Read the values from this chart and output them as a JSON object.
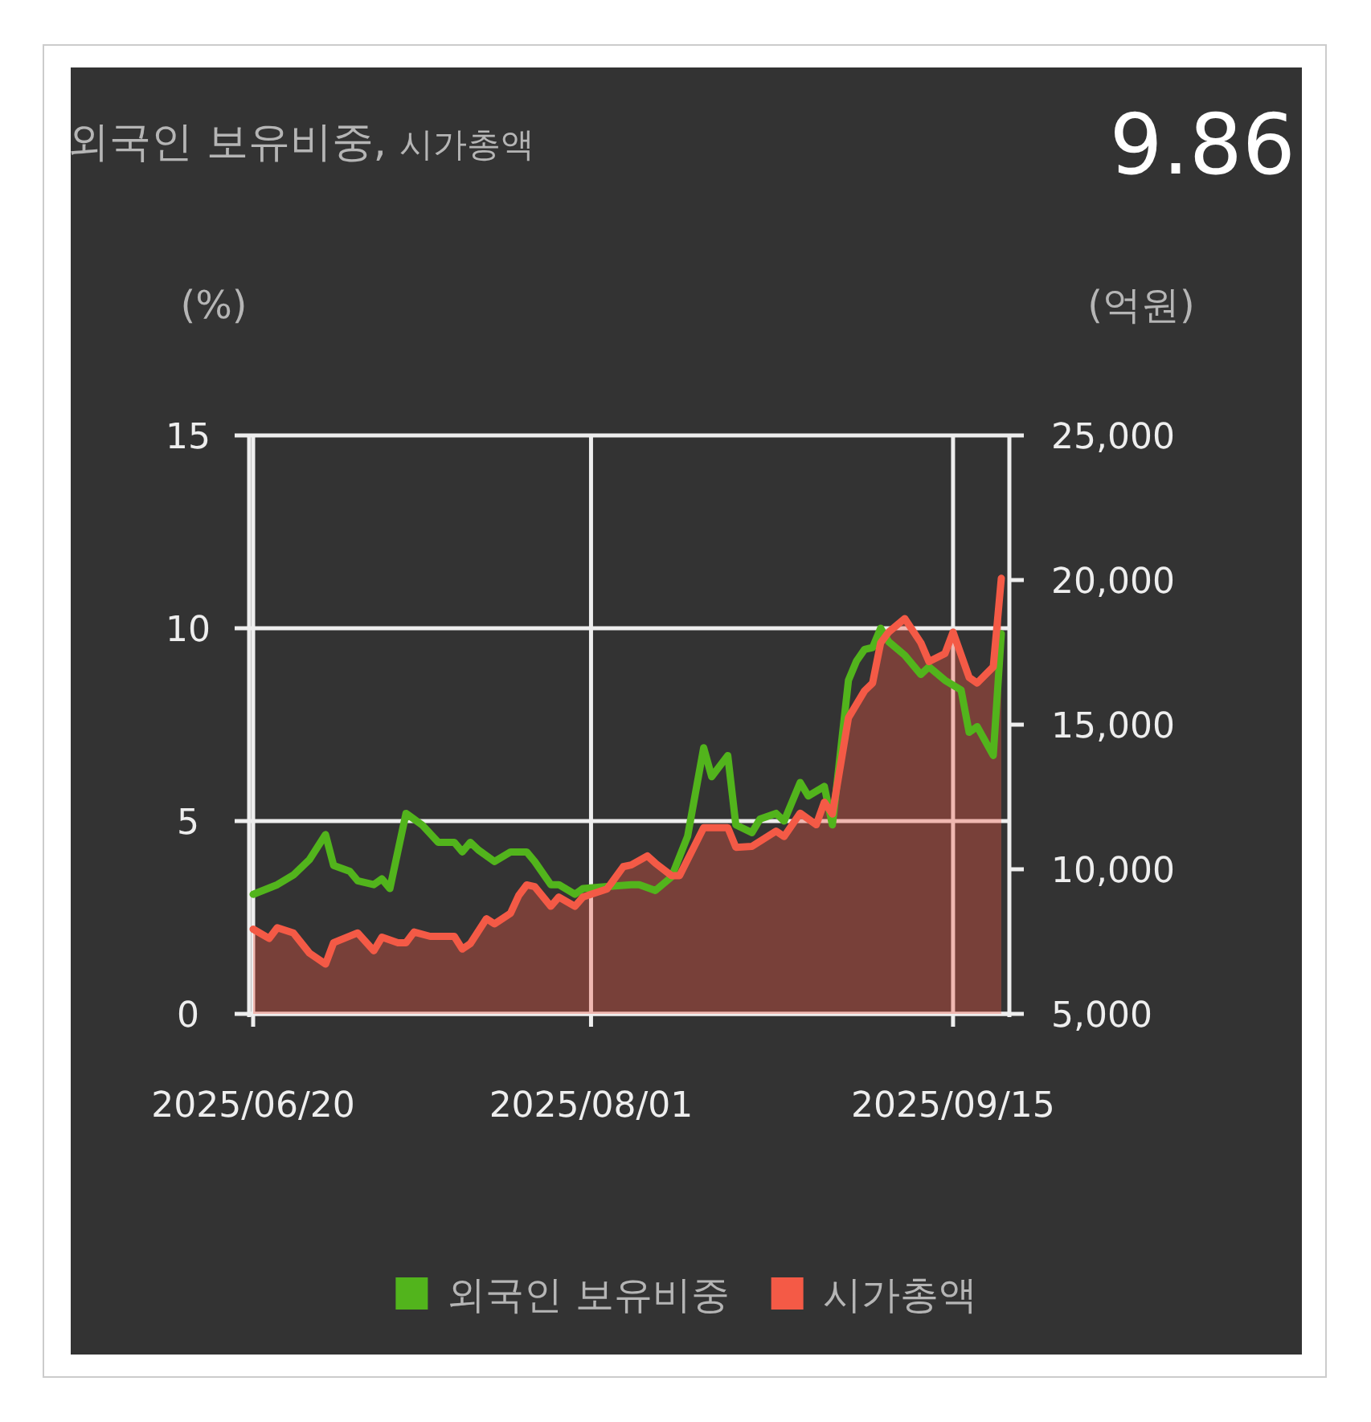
{
  "chart_data": {
    "type": "line",
    "title": "외국인 보유비중,",
    "subtitle": "시가총액",
    "annotations": [
      "9.86"
    ],
    "ylabel": "(%)",
    "y2label": "(억원)",
    "xlim": [
      "2025-06-19T12:00",
      "2025-09-22"
    ],
    "xticks": [
      {
        "value": "2025-06-20",
        "label": "2025/06/20"
      },
      {
        "value": "2025-08-01",
        "label": "2025/08/01"
      },
      {
        "value": "2025-09-15",
        "label": "2025/09/15"
      }
    ],
    "ylim": [
      0,
      15
    ],
    "yticks": [
      0,
      5,
      10,
      15
    ],
    "y2lim": [
      5000,
      25000
    ],
    "y2ticks": [
      {
        "value": 5000,
        "label": "5,000"
      },
      {
        "value": 10000,
        "label": "10,000"
      },
      {
        "value": 15000,
        "label": "15,000"
      },
      {
        "value": 20000,
        "label": "20,000"
      },
      {
        "value": 25000,
        "label": "25,000"
      }
    ],
    "grid": true,
    "legend": "bottom",
    "series": [
      {
        "name": "외국인 보유비중",
        "color": "#52b41c",
        "x": [
          "2025-06-20",
          "2025-06-23",
          "2025-06-25",
          "2025-06-27",
          "2025-06-29",
          "2025-06-30",
          "2025-07-02",
          "2025-07-03",
          "2025-07-05",
          "2025-07-06",
          "2025-07-07",
          "2025-07-09",
          "2025-07-11",
          "2025-07-13",
          "2025-07-15",
          "2025-07-16",
          "2025-07-17",
          "2025-07-18",
          "2025-07-20",
          "2025-07-22",
          "2025-07-24",
          "2025-07-25",
          "2025-07-27",
          "2025-07-28",
          "2025-07-30",
          "2025-07-31",
          "2025-08-03",
          "2025-08-06",
          "2025-08-07",
          "2025-08-09",
          "2025-08-11",
          "2025-08-13",
          "2025-08-15",
          "2025-08-16",
          "2025-08-18",
          "2025-08-19",
          "2025-08-21",
          "2025-08-22",
          "2025-08-24",
          "2025-08-25",
          "2025-08-27",
          "2025-08-28",
          "2025-08-30",
          "2025-08-31",
          "2025-09-02",
          "2025-09-03",
          "2025-09-04",
          "2025-09-05",
          "2025-09-06",
          "2025-09-07",
          "2025-09-09",
          "2025-09-11",
          "2025-09-12",
          "2025-09-14",
          "2025-09-16",
          "2025-09-17",
          "2025-09-18",
          "2025-09-20",
          "2025-09-21"
        ],
        "values": [
          3.1,
          3.35,
          3.6,
          4.0,
          4.65,
          3.85,
          3.7,
          3.45,
          3.35,
          3.5,
          3.25,
          5.2,
          4.9,
          4.45,
          4.45,
          4.2,
          4.45,
          4.25,
          3.95,
          4.2,
          4.2,
          3.95,
          3.35,
          3.35,
          3.1,
          3.25,
          3.3,
          3.35,
          3.35,
          3.2,
          3.55,
          4.6,
          6.9,
          6.15,
          6.7,
          4.9,
          4.7,
          5.05,
          5.2,
          5.0,
          6.0,
          5.65,
          5.9,
          4.9,
          8.65,
          9.15,
          9.45,
          9.5,
          10.0,
          9.65,
          9.3,
          8.8,
          9.0,
          8.65,
          8.4,
          7.3,
          7.45,
          6.7,
          9.86
        ]
      },
      {
        "name": "시가총액",
        "type": "area",
        "axis": "y2",
        "color": "#f45a46",
        "x": [
          "2025-06-20",
          "2025-06-22",
          "2025-06-23",
          "2025-06-25",
          "2025-06-27",
          "2025-06-29",
          "2025-06-30",
          "2025-07-03",
          "2025-07-05",
          "2025-07-06",
          "2025-07-08",
          "2025-07-09",
          "2025-07-10",
          "2025-07-12",
          "2025-07-15",
          "2025-07-16",
          "2025-07-17",
          "2025-07-19",
          "2025-07-20",
          "2025-07-22",
          "2025-07-23",
          "2025-07-24",
          "2025-07-25",
          "2025-07-27",
          "2025-07-28",
          "2025-07-30",
          "2025-07-31",
          "2025-08-03",
          "2025-08-05",
          "2025-08-06",
          "2025-08-08",
          "2025-08-09",
          "2025-08-11",
          "2025-08-12",
          "2025-08-15",
          "2025-08-18",
          "2025-08-19",
          "2025-08-21",
          "2025-08-24",
          "2025-08-25",
          "2025-08-27",
          "2025-08-29",
          "2025-08-30",
          "2025-08-31",
          "2025-09-02",
          "2025-09-04",
          "2025-09-05",
          "2025-09-06",
          "2025-09-07",
          "2025-09-09",
          "2025-09-11",
          "2025-09-12",
          "2025-09-14",
          "2025-09-15",
          "2025-09-17",
          "2025-09-18",
          "2025-09-20",
          "2025-09-21"
        ],
        "values": [
          7930,
          7610,
          7980,
          7800,
          7100,
          6720,
          7460,
          7800,
          7180,
          7650,
          7460,
          7460,
          7830,
          7680,
          7680,
          7240,
          7430,
          8290,
          8110,
          8480,
          9090,
          9460,
          9400,
          8720,
          9040,
          8720,
          9040,
          9320,
          10090,
          10150,
          10460,
          10210,
          9780,
          9780,
          11440,
          11440,
          10760,
          10790,
          11320,
          11130,
          11940,
          11540,
          12320,
          11910,
          15240,
          16170,
          16440,
          17830,
          18200,
          18670,
          17830,
          17180,
          17460,
          18200,
          16630,
          16440,
          17000,
          20060
        ]
      }
    ]
  }
}
